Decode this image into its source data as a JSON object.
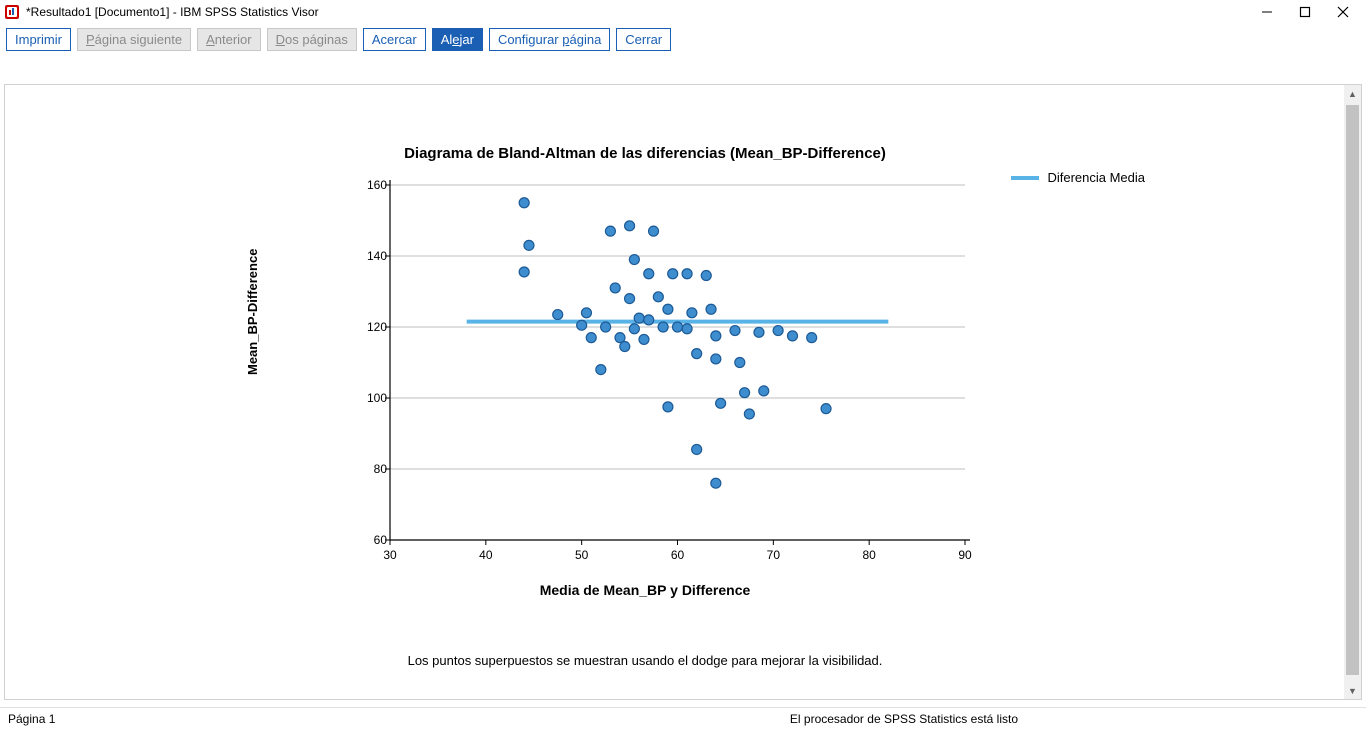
{
  "window": {
    "title": "*Resultado1 [Documento1] - IBM SPSS Statistics Visor"
  },
  "toolbar": {
    "print": "Imprimir",
    "next_page_pre": "P",
    "next_page_post": "ágina siguiente",
    "prev_page_pre": "A",
    "prev_page_post": "nterior",
    "two_pages_pre": "D",
    "two_pages_post": "os páginas",
    "zoom_in": "Acercar",
    "zoom_out_pre": "Al",
    "zoom_out_u": "e",
    "zoom_out_post": "jar",
    "page_setup_pre": "Configurar ",
    "page_setup_u": "p",
    "page_setup_post": "ágina",
    "close": "Cerrar"
  },
  "chart": {
    "type": "scatter",
    "title": "Diagrama de Bland-Altman de las diferencias (Mean_BP-Difference)",
    "xlabel": "Media de Mean_BP y Difference",
    "ylabel": "Mean_BP-Difference",
    "legend_label": "Diferencia Media",
    "legend_color": "#5ab3e6",
    "caption": "Los puntos superpuestos se muestran usando el dodge para mejorar la visibilidad.",
    "xlim": [
      30,
      90
    ],
    "ylim": [
      60,
      160
    ],
    "xticks": [
      30,
      40,
      50,
      60,
      70,
      80,
      90
    ],
    "yticks": [
      60,
      80,
      100,
      120,
      140,
      160
    ],
    "grid_color": "#bfbfbf",
    "axis_color": "#000000",
    "background": "#ffffff",
    "marker_fill": "#3e8ecf",
    "marker_stroke": "#1d5a96",
    "marker_radius": 5,
    "mean_line_y": 121.5,
    "mean_line_x0": 38,
    "mean_line_x1": 82,
    "mean_line_color": "#5ab3e6",
    "mean_line_width": 4,
    "points": [
      [
        44,
        155
      ],
      [
        44.5,
        143
      ],
      [
        44,
        135.5
      ],
      [
        47.5,
        123.5
      ],
      [
        50.5,
        124
      ],
      [
        50,
        120.5
      ],
      [
        51,
        117
      ],
      [
        52,
        108
      ],
      [
        53,
        147
      ],
      [
        53.5,
        131
      ],
      [
        52.5,
        120
      ],
      [
        54,
        117
      ],
      [
        54.5,
        114.5
      ],
      [
        55,
        148.5
      ],
      [
        55.5,
        139
      ],
      [
        55,
        128
      ],
      [
        56,
        122.5
      ],
      [
        55.5,
        119.5
      ],
      [
        56.5,
        116.5
      ],
      [
        57.5,
        147
      ],
      [
        57,
        135
      ],
      [
        58,
        128.5
      ],
      [
        57,
        122
      ],
      [
        58.5,
        120
      ],
      [
        59.5,
        135
      ],
      [
        59,
        125
      ],
      [
        60,
        120
      ],
      [
        59,
        97.5
      ],
      [
        61,
        135
      ],
      [
        61.5,
        124
      ],
      [
        61,
        119.5
      ],
      [
        62,
        112.5
      ],
      [
        62,
        85.5
      ],
      [
        63,
        134.5
      ],
      [
        63.5,
        125
      ],
      [
        64,
        117.5
      ],
      [
        64,
        111
      ],
      [
        64.5,
        98.5
      ],
      [
        64,
        76
      ],
      [
        66,
        119
      ],
      [
        66.5,
        110
      ],
      [
        67,
        101.5
      ],
      [
        67.5,
        95.5
      ],
      [
        68.5,
        118.5
      ],
      [
        69,
        102
      ],
      [
        70.5,
        119
      ],
      [
        72,
        117.5
      ],
      [
        74,
        117
      ],
      [
        75.5,
        97
      ]
    ]
  },
  "status": {
    "page": "Página 1",
    "ready": "El procesador de SPSS Statistics está listo"
  },
  "scrollbar": {
    "thumb_top": 20,
    "thumb_height": 570
  }
}
